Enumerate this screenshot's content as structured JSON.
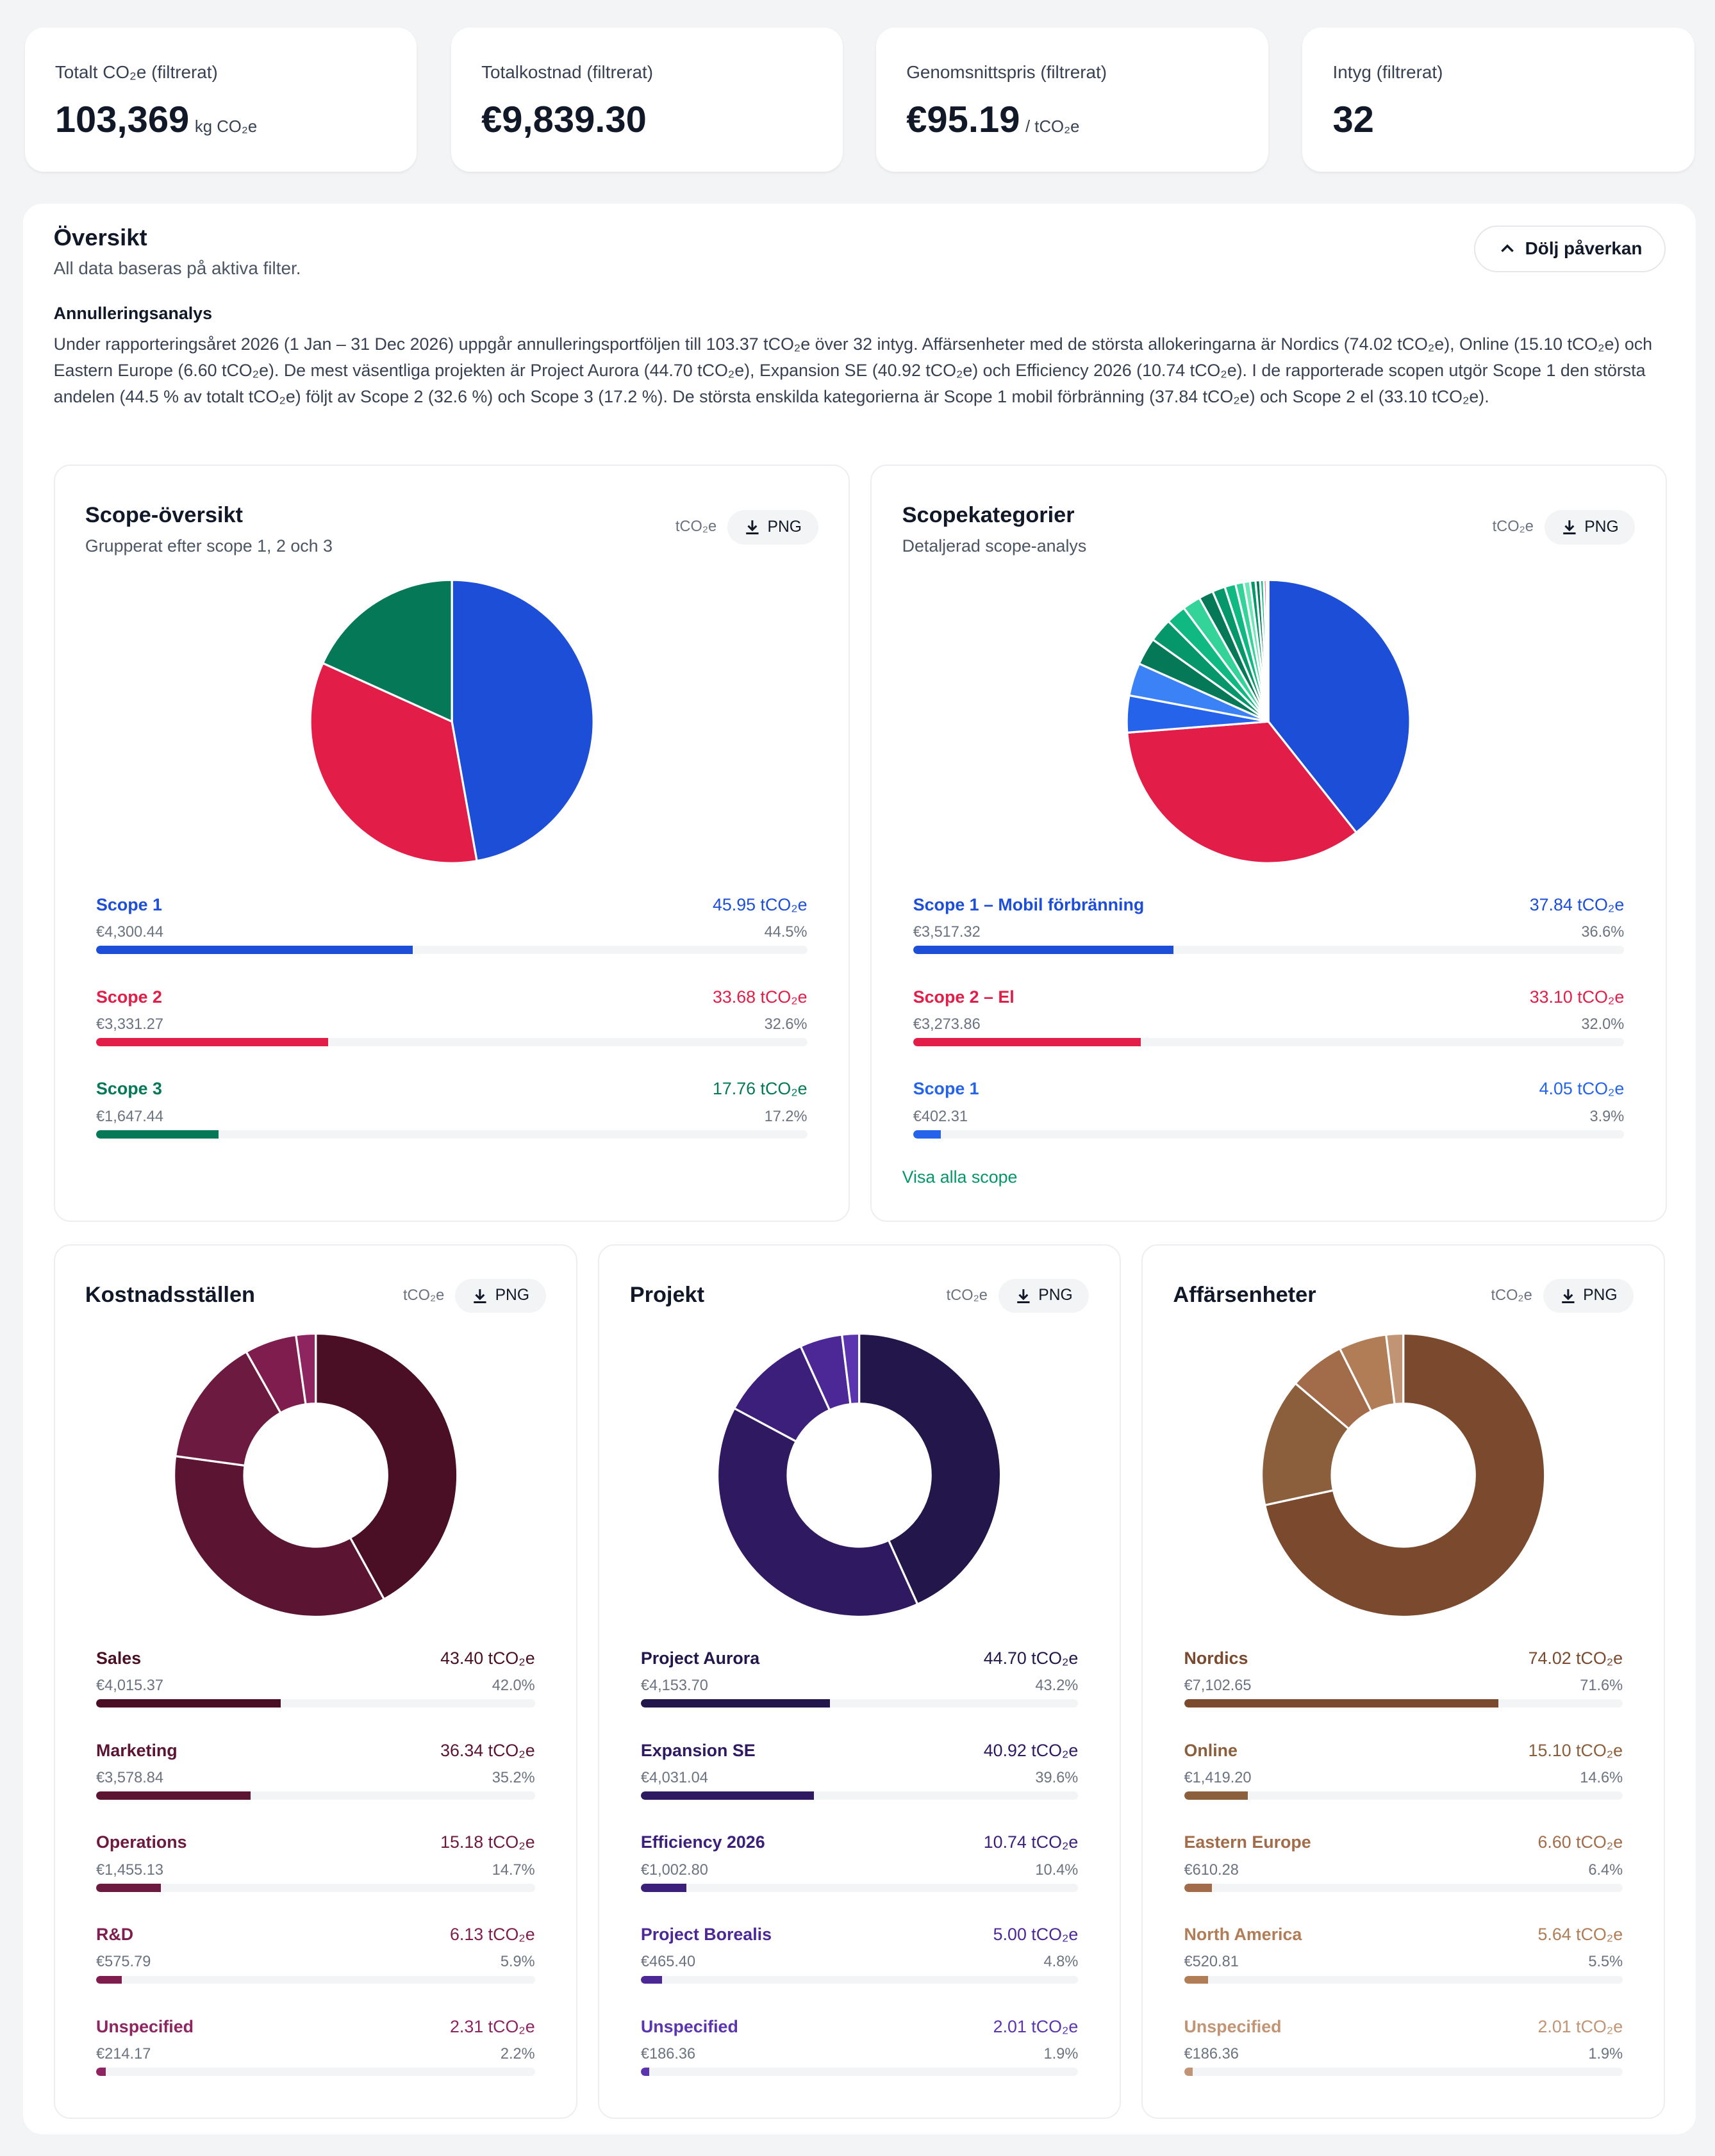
{
  "kpis": [
    {
      "label": "Totalt CO₂e (filtrerat)",
      "value": "103,369",
      "unit": "kg CO₂e"
    },
    {
      "label": "Totalkostnad (filtrerat)",
      "value": "€9,839.30",
      "unit": ""
    },
    {
      "label": "Genomsnittspris (filtrerat)",
      "value": "€95.19",
      "unit": "/ tCO₂e"
    },
    {
      "label": "Intyg (filtrerat)",
      "value": "32",
      "unit": ""
    }
  ],
  "overview": {
    "title": "Översikt",
    "subtitle": "All data baseras på aktiva filter.",
    "hide_button": "Dölj påverkan",
    "analysis_heading": "Annulleringsanalys",
    "analysis_text": "Under rapporteringsåret 2026 (1 Jan – 31 Dec 2026) uppgår annulleringsportföljen till 103.37 tCO₂e över 32 intyg. Affärsenheter med de största allokeringarna är Nordics (74.02 tCO₂e), Online (15.10 tCO₂e) och Eastern Europe (6.60 tCO₂e). De mest väsentliga projekten är Project Aurora (44.70 tCO₂e), Expansion SE (40.92 tCO₂e) och Efficiency 2026 (10.74 tCO₂e). I de rapporterade scopen utgör Scope 1 den största andelen (44.5 % av totalt tCO₂e) följt av Scope 2 (32.6 %) och Scope 3 (17.2 %). De största enskilda kategorierna är Scope 1 mobil förbränning (37.84 tCO₂e) och Scope 2 el (33.10 tCO₂e)."
  },
  "unit_label": "tCO₂e",
  "png_label": "PNG",
  "show_all": "Visa alla scope",
  "chart_data": [
    {
      "id": "scope",
      "type": "pie",
      "title": "Scope-översikt",
      "subtitle": "Grupperat efter scope 1, 2 och 3",
      "items": [
        {
          "name": "Scope 1",
          "value": 45.95,
          "value_label": "45.95 tCO₂e",
          "cost": "€4,300.44",
          "percent": 44.5,
          "percent_label": "44.5%",
          "color": "#1d4ed8"
        },
        {
          "name": "Scope 2",
          "value": 33.68,
          "value_label": "33.68 tCO₂e",
          "cost": "€3,331.27",
          "percent": 32.6,
          "percent_label": "32.6%",
          "color": "#e11d48"
        },
        {
          "name": "Scope 3",
          "value": 17.76,
          "value_label": "17.76 tCO₂e",
          "cost": "€1,647.44",
          "percent": 17.2,
          "percent_label": "17.2%",
          "color": "#047857"
        }
      ]
    },
    {
      "id": "cats",
      "type": "pie",
      "title": "Scopekategorier",
      "subtitle": "Detaljerad scope-analys",
      "items": [
        {
          "name": "Scope 1 – Mobil förbränning",
          "value": 37.84,
          "value_label": "37.84 tCO₂e",
          "cost": "€3,517.32",
          "percent": 36.6,
          "percent_label": "36.6%",
          "color": "#1d4ed8"
        },
        {
          "name": "Scope 2 – El",
          "value": 33.1,
          "value_label": "33.10 tCO₂e",
          "cost": "€3,273.86",
          "percent": 32.0,
          "percent_label": "32.0%",
          "color": "#e11d48"
        },
        {
          "name": "Scope 1",
          "value": 4.05,
          "value_label": "4.05 tCO₂e",
          "cost": "€402.31",
          "percent": 3.9,
          "percent_label": "3.9%",
          "color": "#2563eb"
        }
      ],
      "other_slices": [
        {
          "value": 3.6,
          "color": "#3b82f6"
        },
        {
          "value": 3.0,
          "color": "#047857"
        },
        {
          "value": 2.6,
          "color": "#059669"
        },
        {
          "value": 2.2,
          "color": "#10b981"
        },
        {
          "value": 2.0,
          "color": "#34d399"
        },
        {
          "value": 1.6,
          "color": "#047857"
        },
        {
          "value": 1.4,
          "color": "#059669"
        },
        {
          "value": 1.2,
          "color": "#10b981"
        },
        {
          "value": 0.9,
          "color": "#34d399"
        },
        {
          "value": 0.7,
          "color": "#6ee7b7"
        },
        {
          "value": 0.6,
          "color": "#059669"
        },
        {
          "value": 0.5,
          "color": "#047857"
        },
        {
          "value": 0.4,
          "color": "#10b981"
        },
        {
          "value": 0.3,
          "color": "#f43f5e"
        },
        {
          "value": 0.2,
          "color": "#e5e7eb"
        }
      ]
    },
    {
      "id": "cost",
      "type": "donut",
      "title": "Kostnadsställen",
      "items": [
        {
          "name": "Sales",
          "value": 43.4,
          "value_label": "43.40 tCO₂e",
          "cost": "€4,015.37",
          "percent": 42.0,
          "percent_label": "42.0%",
          "color": "#4a0f24"
        },
        {
          "name": "Marketing",
          "value": 36.34,
          "value_label": "36.34 tCO₂e",
          "cost": "€3,578.84",
          "percent": 35.2,
          "percent_label": "35.2%",
          "color": "#5c1433"
        },
        {
          "name": "Operations",
          "value": 15.18,
          "value_label": "15.18 tCO₂e",
          "cost": "€1,455.13",
          "percent": 14.7,
          "percent_label": "14.7%",
          "color": "#6d1a40"
        },
        {
          "name": "R&D",
          "value": 6.13,
          "value_label": "6.13 tCO₂e",
          "cost": "€575.79",
          "percent": 5.9,
          "percent_label": "5.9%",
          "color": "#7f1e4e"
        },
        {
          "name": "Unspecified",
          "value": 2.31,
          "value_label": "2.31 tCO₂e",
          "cost": "€214.17",
          "percent": 2.2,
          "percent_label": "2.2%",
          "color": "#8f2560"
        }
      ]
    },
    {
      "id": "proj",
      "type": "donut",
      "title": "Projekt",
      "items": [
        {
          "name": "Project Aurora",
          "value": 44.7,
          "value_label": "44.70 tCO₂e",
          "cost": "€4,153.70",
          "percent": 43.2,
          "percent_label": "43.2%",
          "color": "#22164a"
        },
        {
          "name": "Expansion SE",
          "value": 40.92,
          "value_label": "40.92 tCO₂e",
          "cost": "€4,031.04",
          "percent": 39.6,
          "percent_label": "39.6%",
          "color": "#2f1a62"
        },
        {
          "name": "Efficiency 2026",
          "value": 10.74,
          "value_label": "10.74 tCO₂e",
          "cost": "€1,002.80",
          "percent": 10.4,
          "percent_label": "10.4%",
          "color": "#3c1f7a"
        },
        {
          "name": "Project Borealis",
          "value": 5.0,
          "value_label": "5.00 tCO₂e",
          "cost": "€465.40",
          "percent": 4.8,
          "percent_label": "4.8%",
          "color": "#4c2896"
        },
        {
          "name": "Unspecified",
          "value": 2.01,
          "value_label": "2.01 tCO₂e",
          "cost": "€186.36",
          "percent": 1.9,
          "percent_label": "1.9%",
          "color": "#5b34b0"
        }
      ]
    },
    {
      "id": "bu",
      "type": "donut",
      "title": "Affärsenheter",
      "items": [
        {
          "name": "Nordics",
          "value": 74.02,
          "value_label": "74.02 tCO₂e",
          "cost": "€7,102.65",
          "percent": 71.6,
          "percent_label": "71.6%",
          "color": "#7b4a2e"
        },
        {
          "name": "Online",
          "value": 15.1,
          "value_label": "15.10 tCO₂e",
          "cost": "€1,419.20",
          "percent": 14.6,
          "percent_label": "14.6%",
          "color": "#8b5e3c"
        },
        {
          "name": "Eastern Europe",
          "value": 6.6,
          "value_label": "6.60 tCO₂e",
          "cost": "€610.28",
          "percent": 6.4,
          "percent_label": "6.4%",
          "color": "#a26c4a"
        },
        {
          "name": "North America",
          "value": 5.64,
          "value_label": "5.64 tCO₂e",
          "cost": "€520.81",
          "percent": 5.5,
          "percent_label": "5.5%",
          "color": "#b07d57"
        },
        {
          "name": "Unspecified",
          "value": 2.01,
          "value_label": "2.01 tCO₂e",
          "cost": "€186.36",
          "percent": 1.9,
          "percent_label": "1.9%",
          "color": "#c09474"
        }
      ]
    }
  ]
}
